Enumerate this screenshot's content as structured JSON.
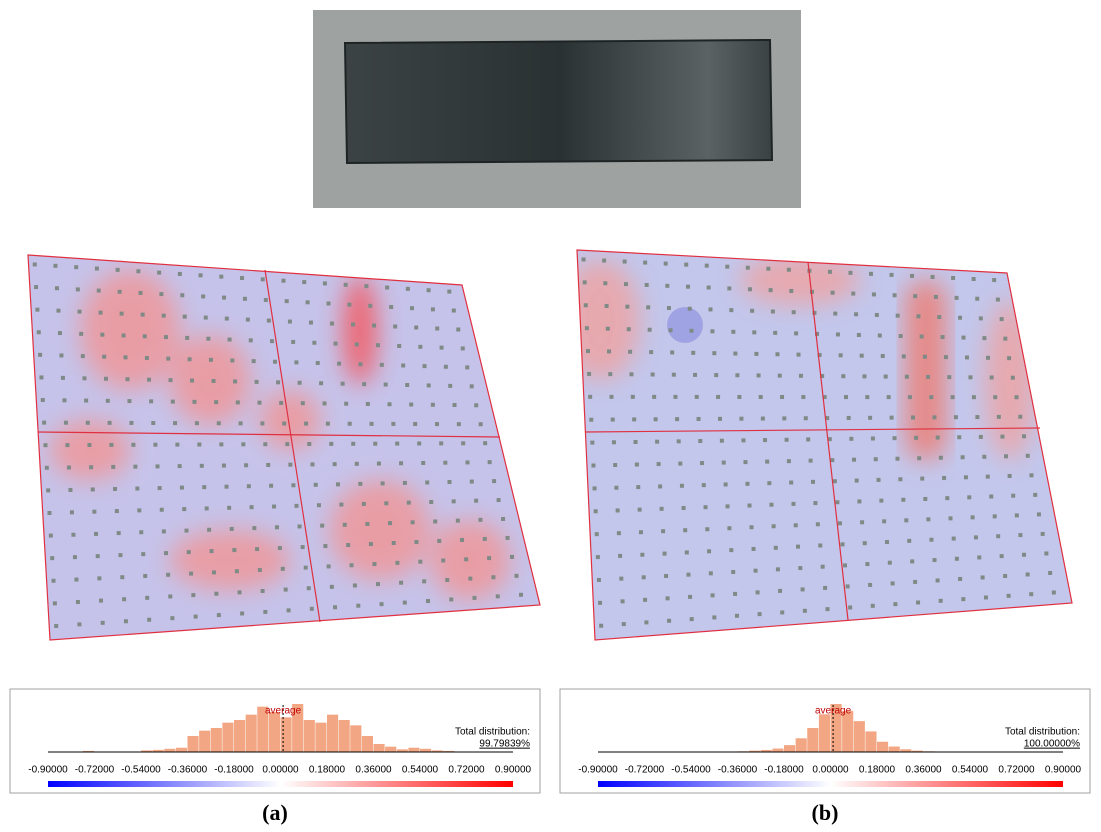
{
  "panels": [
    {
      "label": "(a)",
      "histogram": {
        "type": "histogram",
        "color": "#f2a683",
        "bins": [
          -0.9,
          -0.855,
          -0.81,
          -0.765,
          -0.72,
          -0.675,
          -0.63,
          -0.585,
          -0.54,
          -0.495,
          -0.45,
          -0.405,
          -0.36,
          -0.315,
          -0.27,
          -0.225,
          -0.18,
          -0.135,
          -0.09,
          -0.045,
          0,
          0.045,
          0.09,
          0.135,
          0.18,
          0.225,
          0.27,
          0.315,
          0.36,
          0.405,
          0.45,
          0.495,
          0.54,
          0.585,
          0.63,
          0.675,
          0.72,
          0.765,
          0.81,
          0.855,
          0.9
        ],
        "counts": [
          0,
          0,
          0,
          2,
          0,
          0,
          0,
          0,
          3,
          4,
          6,
          8,
          30,
          40,
          45,
          55,
          60,
          70,
          85,
          75,
          65,
          90,
          60,
          55,
          70,
          60,
          50,
          30,
          15,
          10,
          5,
          8,
          6,
          3,
          2,
          0,
          0,
          0,
          0,
          0
        ],
        "xlim": [
          -0.9,
          0.9
        ],
        "xticks": [
          {
            "value": -0.9,
            "label": "-0.90000"
          },
          {
            "value": -0.72,
            "label": "-0.72000"
          },
          {
            "value": -0.54,
            "label": "-0.54000"
          },
          {
            "value": -0.36,
            "label": "-0.36000"
          },
          {
            "value": -0.18,
            "label": "-0.18000"
          },
          {
            "value": 0,
            "label": "0.00000"
          },
          {
            "value": 0.18,
            "label": "0.18000"
          },
          {
            "value": 0.36,
            "label": "0.36000"
          },
          {
            "value": 0.54,
            "label": "0.54000"
          },
          {
            "value": 0.72,
            "label": "0.72000"
          },
          {
            "value": 0.9,
            "label": "0.90000"
          }
        ],
        "average_label": "average",
        "average": 0.01,
        "total_label": "Total distribution:",
        "total": 99.79839,
        "total_label_value": "99.79839%",
        "colorbar": [
          "#0000ff",
          "#ffffff",
          "#ff0000"
        ]
      }
    },
    {
      "label": "(b)",
      "histogram": {
        "type": "histogram",
        "color": "#f2a683",
        "bins": [
          -0.9,
          -0.855,
          -0.81,
          -0.765,
          -0.72,
          -0.675,
          -0.63,
          -0.585,
          -0.54,
          -0.495,
          -0.45,
          -0.405,
          -0.36,
          -0.315,
          -0.27,
          -0.225,
          -0.18,
          -0.135,
          -0.09,
          -0.045,
          0,
          0.045,
          0.09,
          0.135,
          0.18,
          0.225,
          0.27,
          0.315,
          0.36,
          0.405,
          0.45,
          0.495,
          0.54,
          0.585,
          0.63,
          0.675,
          0.72,
          0.765,
          0.81,
          0.855,
          0.9
        ],
        "counts": [
          0,
          0,
          0,
          0,
          0,
          0,
          0,
          0,
          0,
          0,
          0,
          0,
          1,
          2,
          3,
          5,
          10,
          20,
          35,
          55,
          70,
          60,
          45,
          30,
          15,
          8,
          4,
          2,
          1,
          0,
          0,
          0,
          0,
          0,
          0,
          0,
          0,
          0,
          0,
          0
        ],
        "xlim": [
          -0.9,
          0.9
        ],
        "xticks": [
          {
            "value": -0.9,
            "label": "-0.90000"
          },
          {
            "value": -0.72,
            "label": "-0.72000"
          },
          {
            "value": -0.54,
            "label": "-0.54000"
          },
          {
            "value": -0.36,
            "label": "-0.36000"
          },
          {
            "value": -0.18,
            "label": "-0.18000"
          },
          {
            "value": 0,
            "label": "0.00000"
          },
          {
            "value": 0.18,
            "label": "0.18000"
          },
          {
            "value": 0.36,
            "label": "0.36000"
          },
          {
            "value": 0.54,
            "label": "0.54000"
          },
          {
            "value": 0.72,
            "label": "0.72000"
          },
          {
            "value": 0.9,
            "label": "0.90000"
          }
        ],
        "average_label": "average",
        "average": 0.01,
        "total_label": "Total distribution:",
        "total": 100.0,
        "total_label_value": "100.00000%",
        "colorbar": [
          "#0000ff",
          "#ffffff",
          "#ff0000"
        ]
      }
    }
  ]
}
